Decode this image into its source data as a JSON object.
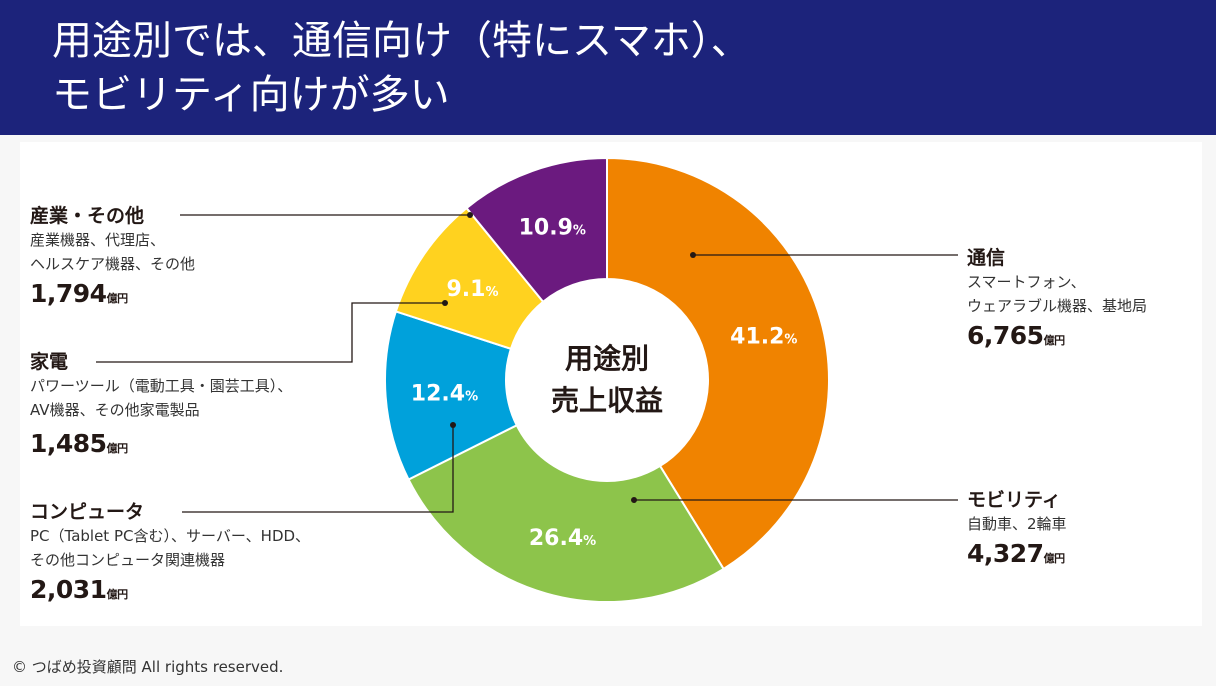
{
  "header": {
    "title_line1": "用途別では、通信向け（特にスマホ）、",
    "title_line2": "モビリティ向けが多い"
  },
  "chart_data": {
    "type": "pie",
    "subtype": "donut",
    "center_label_line1": "用途別",
    "center_label_line2": "売上収益",
    "unit": "億円",
    "start": "top, clockwise",
    "slices": [
      {
        "name": "通信",
        "percent": 41.2,
        "pct_text": "41.2",
        "value": 6765,
        "value_text": "6,765",
        "desc1": "スマートフォン、",
        "desc2": "ウェアラブル機器、基地局",
        "color": "#f08300"
      },
      {
        "name": "モビリティ",
        "percent": 26.4,
        "pct_text": "26.4",
        "value": 4327,
        "value_text": "4,327",
        "desc1": "自動車、2輪車",
        "desc2": "",
        "color": "#8dc44b"
      },
      {
        "name": "コンピュータ",
        "percent": 12.4,
        "pct_text": "12.4",
        "value": 2031,
        "value_text": "2,031",
        "desc1": "PC（Tablet PC含む）、サーバー、HDD、",
        "desc2": "その他コンピュータ関連機器",
        "color": "#00a1db"
      },
      {
        "name": "家電",
        "percent": 9.1,
        "pct_text": "9.1",
        "value": 1485,
        "value_text": "1,485",
        "desc1": "パワーツール（電動工具・園芸工具）、",
        "desc2": "AV機器、その他家電製品",
        "color": "#ffd21f"
      },
      {
        "name": "産業・その他",
        "percent": 10.9,
        "pct_text": "10.9",
        "value": 1794,
        "value_text": "1,794",
        "desc1": "産業機器、代理店、",
        "desc2": "ヘルスケア機器、その他",
        "color": "#6b1a7f"
      }
    ],
    "pct_suffix": "%"
  },
  "footer": {
    "copyright": "© つばめ投資顧問 All rights reserved."
  }
}
